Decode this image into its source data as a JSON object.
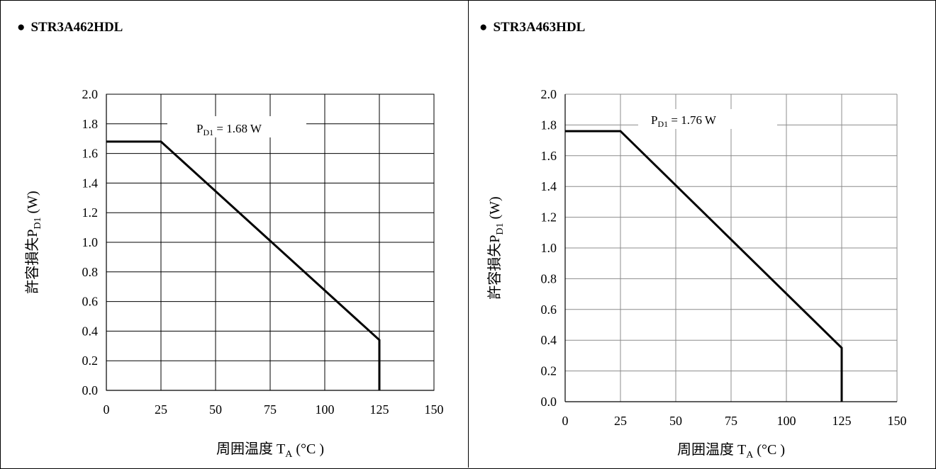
{
  "charts": [
    {
      "title": "STR3A462HDL",
      "bullet": "●",
      "chart_data": {
        "type": "line",
        "title": "STR3A462HDL",
        "xlabel": "周囲温度 T_A (°C )",
        "ylabel": "許容損失P_D1 (W)",
        "xlim": [
          0,
          150
        ],
        "ylim": [
          0,
          2.0
        ],
        "x_ticks": [
          "0",
          "25",
          "50",
          "75",
          "100",
          "125",
          "150"
        ],
        "y_ticks": [
          "0.0",
          "0.2",
          "0.4",
          "0.6",
          "0.8",
          "1.0",
          "1.2",
          "1.4",
          "1.6",
          "1.8",
          "2.0"
        ],
        "grid": true,
        "series": [
          {
            "x": [
              0,
              25,
              125,
              125
            ],
            "y": [
              1.68,
              1.68,
              0.34,
              0
            ]
          }
        ],
        "annotation": {
          "sym": "P",
          "sub": "D1",
          "rest": " = 1.68 W"
        }
      }
    },
    {
      "title": "STR3A463HDL",
      "bullet": "●",
      "chart_data": {
        "type": "line",
        "title": "STR3A463HDL",
        "xlabel": "周囲温度 T_A (°C )",
        "ylabel": "許容損失P_D1 (W)",
        "xlim": [
          0,
          150
        ],
        "ylim": [
          0,
          2.0
        ],
        "x_ticks": [
          "0",
          "25",
          "50",
          "75",
          "100",
          "125",
          "150"
        ],
        "y_ticks": [
          "0.0",
          "0.2",
          "0.4",
          "0.6",
          "0.8",
          "1.0",
          "1.2",
          "1.4",
          "1.6",
          "1.8",
          "2.0"
        ],
        "grid": true,
        "series": [
          {
            "x": [
              0,
              25,
              125,
              125
            ],
            "y": [
              1.76,
              1.76,
              0.35,
              0
            ]
          }
        ],
        "annotation": {
          "sym": "P",
          "sub": "D1",
          "rest": " = 1.76 W"
        }
      }
    }
  ],
  "axis_text": {
    "x_main": "周囲温度 T",
    "x_sub": "A",
    "x_unit": " (°C )",
    "y_main": "許容損失P",
    "y_sub": "D1",
    "y_unit": "  (W)"
  }
}
